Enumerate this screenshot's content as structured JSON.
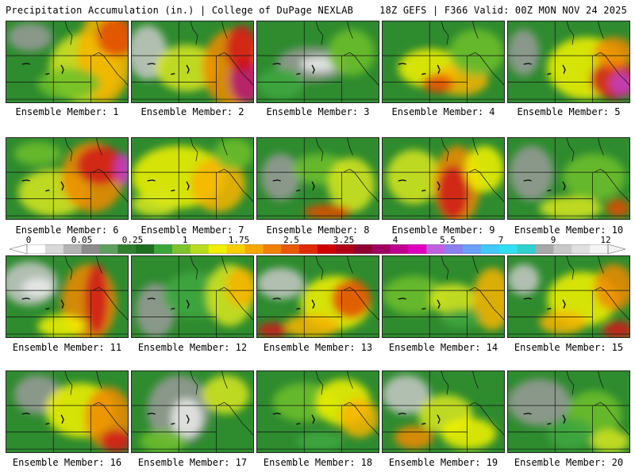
{
  "header": {
    "title_left": "Precipitation Accumulation (in.) | College of DuPage NEXLAB",
    "title_right": "18Z GEFS | F366 Valid: 00Z MON NOV 24 2025"
  },
  "colorbar": {
    "labels": [
      "0",
      "0.05",
      "0.25",
      "1",
      "1.75",
      "2.5",
      "3.25",
      "4",
      "5.5",
      "7",
      "9",
      "12"
    ],
    "colors": [
      "#ffffff",
      "#d9d9d9",
      "#b4b4b4",
      "#8c8c8c",
      "#5f9f5f",
      "#2f7f2f",
      "#1f6f1f",
      "#3aa63a",
      "#7cc22a",
      "#b8dc1e",
      "#f0f000",
      "#f8d000",
      "#f8a800",
      "#f08000",
      "#e85a00",
      "#e02a00",
      "#d00000",
      "#b00018",
      "#900030",
      "#a00060",
      "#c00090",
      "#e000c0",
      "#c060e0",
      "#8a80f0",
      "#6aa0ff",
      "#40c8ff",
      "#30e0f0",
      "#30d0d0",
      "#a8a8a8",
      "#c8c8c8",
      "#e0e0e0",
      "#f4f4f4"
    ]
  },
  "panels": [
    {
      "label": "Ensemble Member: 1"
    },
    {
      "label": "Ensemble Member: 2"
    },
    {
      "label": "Ensemble Member: 3"
    },
    {
      "label": "Ensemble Member: 4"
    },
    {
      "label": "Ensemble Member: 5"
    },
    {
      "label": "Ensemble Member: 6"
    },
    {
      "label": "Ensemble Member: 7"
    },
    {
      "label": "Ensemble Member: 8"
    },
    {
      "label": "Ensemble Member: 9"
    },
    {
      "label": "Ensemble Member: 10"
    },
    {
      "label": "Ensemble Member: 11"
    },
    {
      "label": "Ensemble Member: 12"
    },
    {
      "label": "Ensemble Member: 13"
    },
    {
      "label": "Ensemble Member: 14"
    },
    {
      "label": "Ensemble Member: 15"
    },
    {
      "label": "Ensemble Member: 16"
    },
    {
      "label": "Ensemble Member: 17"
    },
    {
      "label": "Ensemble Member: 18"
    },
    {
      "label": "Ensemble Member: 19"
    },
    {
      "label": "Ensemble Member: 20"
    }
  ]
}
